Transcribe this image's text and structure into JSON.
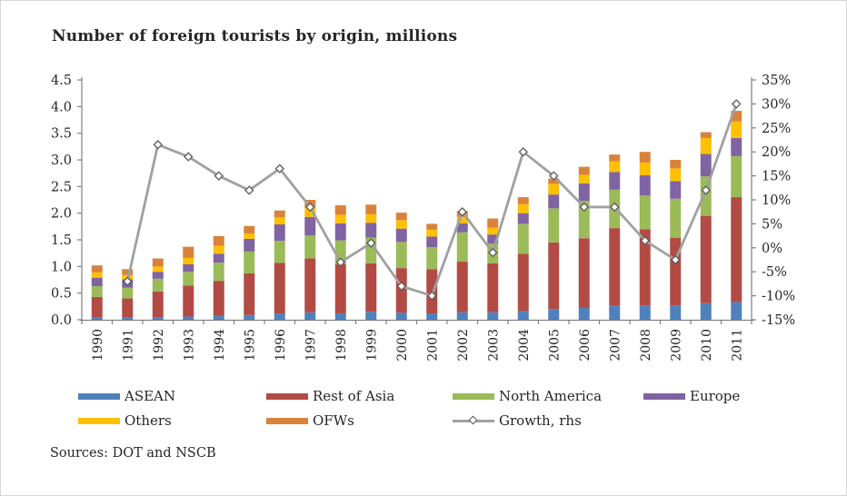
{
  "title": "Number of foreign tourists by origin, millions",
  "source": "Sources: DOT and NSCB",
  "colors": {
    "asean": "#4F81BD",
    "rest_of_asia": "#B34B45",
    "north_america": "#9BBB59",
    "europe": "#8064A2",
    "others": "#FFC000",
    "ofws": "#D9823C",
    "growth_line": "#A0A0A0",
    "marker_stroke": "#595959",
    "axis": "#808080",
    "text": "#262626"
  },
  "chart_data": {
    "type": "bar",
    "subtype": "stacked-bars-with-line-overlay",
    "categories": [
      "1990",
      "1991",
      "1992",
      "1993",
      "1994",
      "1995",
      "1996",
      "1997",
      "1998",
      "1999",
      "2000",
      "2001",
      "2002",
      "2003",
      "2004",
      "2005",
      "2006",
      "2007",
      "2008",
      "2009",
      "2010",
      "2011"
    ],
    "series": [
      {
        "name": "ASEAN",
        "color_key": "asean",
        "values": [
          0.05,
          0.05,
          0.05,
          0.06,
          0.07,
          0.09,
          0.12,
          0.14,
          0.12,
          0.15,
          0.13,
          0.12,
          0.14,
          0.14,
          0.16,
          0.2,
          0.23,
          0.26,
          0.27,
          0.27,
          0.31,
          0.33
        ]
      },
      {
        "name": "Rest of Asia",
        "color_key": "rest_of_asia",
        "values": [
          0.38,
          0.35,
          0.48,
          0.58,
          0.66,
          0.78,
          0.95,
          1.01,
          0.92,
          0.91,
          0.84,
          0.83,
          0.95,
          0.92,
          1.08,
          1.25,
          1.3,
          1.46,
          1.43,
          1.27,
          1.64,
          1.97
        ]
      },
      {
        "name": "North America",
        "color_key": "north_america",
        "values": [
          0.2,
          0.2,
          0.24,
          0.26,
          0.34,
          0.41,
          0.41,
          0.43,
          0.45,
          0.48,
          0.49,
          0.41,
          0.55,
          0.37,
          0.56,
          0.64,
          0.7,
          0.72,
          0.63,
          0.73,
          0.74,
          0.77
        ]
      },
      {
        "name": "Europe",
        "color_key": "europe",
        "values": [
          0.16,
          0.16,
          0.13,
          0.14,
          0.17,
          0.24,
          0.31,
          0.35,
          0.32,
          0.28,
          0.25,
          0.2,
          0.17,
          0.17,
          0.2,
          0.26,
          0.33,
          0.33,
          0.38,
          0.33,
          0.42,
          0.34
        ]
      },
      {
        "name": "Others",
        "color_key": "others",
        "values": [
          0.1,
          0.08,
          0.1,
          0.12,
          0.15,
          0.1,
          0.13,
          0.17,
          0.16,
          0.16,
          0.16,
          0.13,
          0.12,
          0.13,
          0.17,
          0.2,
          0.16,
          0.2,
          0.24,
          0.24,
          0.3,
          0.31
        ]
      },
      {
        "name": "OFWs",
        "color_key": "ofws",
        "values": [
          0.13,
          0.11,
          0.15,
          0.21,
          0.18,
          0.14,
          0.13,
          0.15,
          0.18,
          0.18,
          0.14,
          0.11,
          0.11,
          0.17,
          0.13,
          0.1,
          0.15,
          0.13,
          0.2,
          0.16,
          0.11,
          0.2
        ]
      }
    ],
    "line_series": {
      "name": "Growth, rhs",
      "axis": "right",
      "x": [
        "1991",
        "1992",
        "1993",
        "1994",
        "1995",
        "1996",
        "1997",
        "1998",
        "1999",
        "2000",
        "2001",
        "2002",
        "2003",
        "2004",
        "2005",
        "2006",
        "2007",
        "2008",
        "2009",
        "2010",
        "2011"
      ],
      "values": [
        -7,
        21.5,
        19,
        15,
        12,
        16.5,
        8.5,
        -3,
        1,
        -8,
        -10,
        7.5,
        -1,
        20,
        15,
        8.5,
        8.5,
        1.5,
        -2.5,
        12,
        30
      ]
    },
    "left_axis": {
      "min": 0.0,
      "max": 4.5,
      "step": 0.5,
      "ticks": [
        "0.0",
        "0.5",
        "1.0",
        "1.5",
        "2.0",
        "2.5",
        "3.0",
        "3.5",
        "4.0",
        "4.5"
      ]
    },
    "right_axis": {
      "min": -15,
      "max": 35,
      "step": 5,
      "ticks": [
        "-15%",
        "-10%",
        "-5%",
        "0%",
        "5%",
        "10%",
        "15%",
        "20%",
        "25%",
        "30%",
        "35%"
      ]
    },
    "grid": false,
    "legend_position": "bottom"
  },
  "legend": {
    "items": [
      {
        "label": "ASEAN",
        "swatch": "bar",
        "color_key": "asean"
      },
      {
        "label": "Rest of Asia",
        "swatch": "bar",
        "color_key": "rest_of_asia"
      },
      {
        "label": "North America",
        "swatch": "bar",
        "color_key": "north_america"
      },
      {
        "label": "Europe",
        "swatch": "bar",
        "color_key": "europe"
      },
      {
        "label": "Others",
        "swatch": "bar",
        "color_key": "others"
      },
      {
        "label": "OFWs",
        "swatch": "bar",
        "color_key": "ofws"
      },
      {
        "label": "Growth, rhs",
        "swatch": "line",
        "color_key": "growth_line"
      }
    ]
  }
}
